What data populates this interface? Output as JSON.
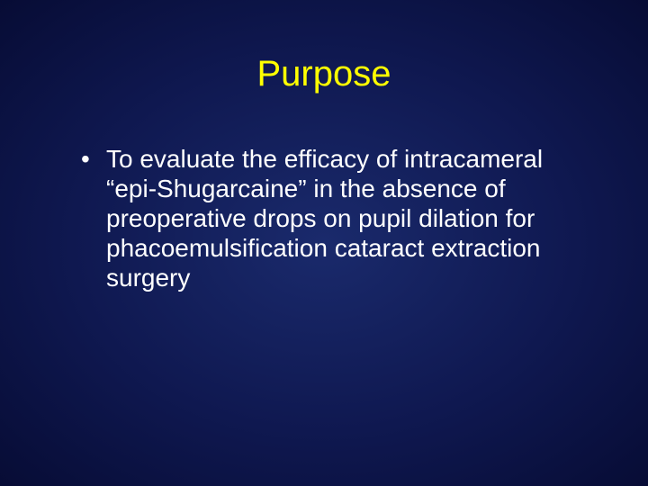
{
  "slide": {
    "title": "Purpose",
    "title_color": "#ffff00",
    "body_color": "#ffffff",
    "title_fontsize": 40,
    "body_fontsize": 28,
    "background_gradient": {
      "center": "#1a2a6c",
      "mid": "#0f1850",
      "edge": "#070c35"
    },
    "bullets": [
      "To evaluate the efficacy of intracameral “epi-Shugarcaine” in the absence of preoperative drops on pupil dilation for phacoemulsification cataract extraction surgery"
    ]
  }
}
